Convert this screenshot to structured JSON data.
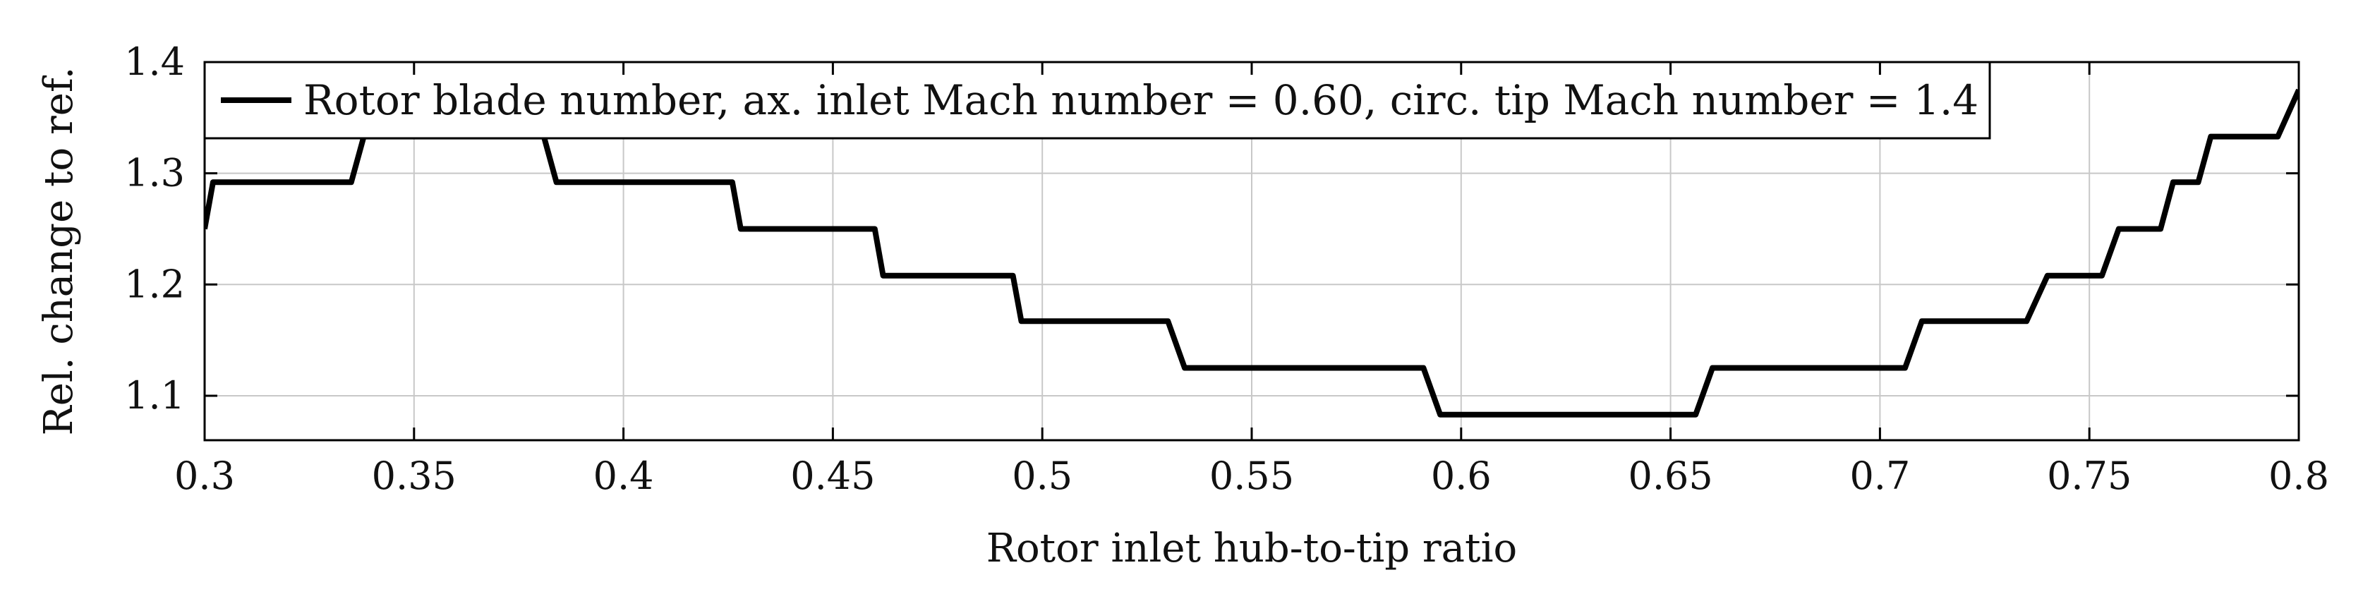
{
  "chart_data": {
    "type": "line",
    "title": "",
    "xlabel": "Rotor inlet hub-to-tip ratio",
    "ylabel": "Rel. change to ref.",
    "xlim": [
      0.3,
      0.8
    ],
    "ylim": [
      1.06,
      1.4
    ],
    "grid": true,
    "legend_position": "top-left",
    "x_ticks": [
      0.3,
      0.35,
      0.4,
      0.45,
      0.5,
      0.55,
      0.6,
      0.65,
      0.7,
      0.75,
      0.8
    ],
    "x_tick_labels": [
      "0.3",
      "0.35",
      "0.4",
      "0.45",
      "0.5",
      "0.55",
      "0.6",
      "0.65",
      "0.7",
      "0.75",
      "0.8"
    ],
    "y_ticks": [
      1.1,
      1.2,
      1.3,
      1.4
    ],
    "y_tick_labels": [
      "1.1",
      "1.2",
      "1.3",
      "1.4"
    ],
    "series": [
      {
        "name": "Rotor blade number, ax. inlet Mach number = 0.60, circ. tip Mach number = 1.4",
        "color": "#000000",
        "x": [
          0.3,
          0.302,
          0.335,
          0.338,
          0.381,
          0.384,
          0.426,
          0.428,
          0.46,
          0.462,
          0.493,
          0.495,
          0.53,
          0.534,
          0.591,
          0.595,
          0.656,
          0.66,
          0.706,
          0.71,
          0.735,
          0.74,
          0.753,
          0.757,
          0.767,
          0.77,
          0.776,
          0.779,
          0.786,
          0.789,
          0.793,
          0.795,
          0.8
        ],
        "y": [
          1.25,
          1.292,
          1.292,
          1.333,
          1.333,
          1.292,
          1.292,
          1.25,
          1.25,
          1.208,
          1.208,
          1.167,
          1.167,
          1.125,
          1.125,
          1.083,
          1.083,
          1.125,
          1.125,
          1.167,
          1.167,
          1.208,
          1.208,
          1.25,
          1.25,
          1.292,
          1.292,
          1.333,
          1.333,
          1.333,
          1.333,
          1.333,
          1.375
        ]
      }
    ]
  }
}
